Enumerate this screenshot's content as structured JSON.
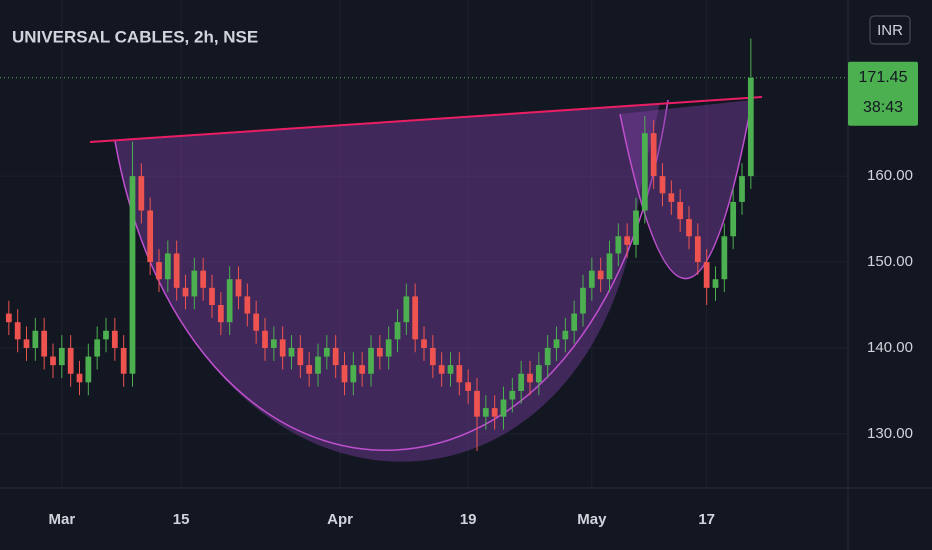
{
  "chart_data": {
    "type": "candlestick",
    "title": "UNIVERSAL CABLES, 2h, NSE",
    "currency": "INR",
    "last_price": 171.45,
    "countdown": "38:43",
    "up_color": "#4caf50",
    "down_color": "#ef5350",
    "xlim": [
      -1,
      95
    ],
    "xticks": [
      {
        "value": 6,
        "label": "Mar"
      },
      {
        "value": 19.5,
        "label": "15"
      },
      {
        "value": 37.5,
        "label": "Apr"
      },
      {
        "value": 52,
        "label": "19"
      },
      {
        "value": 66,
        "label": "May"
      },
      {
        "value": 79,
        "label": "17"
      }
    ],
    "ylim": [
      123.7,
      180.5
    ],
    "yticks": [
      {
        "value": 130,
        "label": "130.00"
      },
      {
        "value": 140,
        "label": "140.00"
      },
      {
        "value": 150,
        "label": "150.00"
      },
      {
        "value": 160,
        "label": "160.00"
      }
    ],
    "grid": true,
    "open": [
      144,
      143,
      141,
      140,
      142,
      139,
      138,
      140,
      137,
      136,
      139,
      141,
      142,
      140,
      137,
      160,
      156,
      150,
      148,
      151,
      147,
      146,
      149,
      147,
      145,
      143,
      148,
      146,
      144,
      142,
      140,
      141,
      139,
      140,
      138,
      137,
      139,
      140,
      138,
      136,
      138,
      137,
      140,
      139,
      141,
      143,
      146,
      141,
      140,
      138,
      137,
      138,
      136,
      135,
      132,
      133,
      132,
      134,
      135,
      137,
      136,
      138,
      140,
      141,
      142,
      144,
      147,
      149,
      148,
      151,
      153,
      152,
      156,
      165,
      160,
      158,
      157,
      155,
      153,
      150,
      147,
      148,
      153,
      157,
      160
    ],
    "high": [
      145.5,
      144.5,
      142.5,
      143.5,
      143.5,
      140.5,
      141.5,
      141.5,
      138.5,
      140.5,
      142.5,
      143.5,
      143.5,
      141.5,
      164,
      161.5,
      157.5,
      151.5,
      152.5,
      152.5,
      148.5,
      150.5,
      150.5,
      148.5,
      146.5,
      149.5,
      149.5,
      147.5,
      145.5,
      143.5,
      142.5,
      142.5,
      141.5,
      141.5,
      139.5,
      140.5,
      141.5,
      141.5,
      139.5,
      139.5,
      139.5,
      141.5,
      141.5,
      142.5,
      144.5,
      147.5,
      147.5,
      142.5,
      141.5,
      139.5,
      139.5,
      139.5,
      137.5,
      136.5,
      134.5,
      134.5,
      135.5,
      136.5,
      138.5,
      138.5,
      139.5,
      141.5,
      142.5,
      143.5,
      145.5,
      148.5,
      150.5,
      150.5,
      152.5,
      154.5,
      154.5,
      157.5,
      167,
      166.5,
      161.5,
      159.5,
      158.5,
      156.5,
      154.5,
      151.5,
      149.5,
      154.5,
      158.5,
      161.5,
      176
    ],
    "low": [
      141.5,
      139.5,
      138.5,
      138.5,
      137.5,
      136.5,
      136.5,
      135.5,
      134.5,
      134.5,
      137.5,
      139.5,
      138.5,
      135.5,
      135.5,
      154.5,
      148.5,
      146.5,
      146.5,
      145.5,
      144.5,
      144.5,
      145.5,
      143.5,
      141.5,
      141.5,
      144.5,
      142.5,
      140.5,
      138.5,
      138.5,
      137.5,
      137.5,
      136.5,
      135.5,
      135.5,
      137.5,
      136.5,
      134.5,
      134.5,
      135.5,
      135.5,
      137.5,
      137.5,
      139.5,
      141.5,
      139.5,
      138.5,
      136.5,
      135.5,
      135.5,
      134.5,
      133.5,
      128,
      130.5,
      130.5,
      130.5,
      132.5,
      133.5,
      134.5,
      134.5,
      136.5,
      138.5,
      139.5,
      140.5,
      142.5,
      145.5,
      146.5,
      146.5,
      149.5,
      150.5,
      150.5,
      154.5,
      158.5,
      156.5,
      155.5,
      153.5,
      151.5,
      148.5,
      145,
      145.5,
      146.5,
      151.5,
      155.5,
      158.5
    ],
    "close": [
      143,
      141,
      140,
      142,
      139,
      138,
      140,
      137,
      136,
      139,
      141,
      142,
      140,
      137,
      160,
      156,
      150,
      148,
      151,
      147,
      146,
      149,
      147,
      145,
      143,
      148,
      146,
      144,
      142,
      140,
      141,
      139,
      140,
      138,
      137,
      139,
      140,
      138,
      136,
      138,
      137,
      140,
      139,
      141,
      143,
      146,
      141,
      140,
      138,
      137,
      138,
      136,
      135,
      132,
      133,
      132,
      134,
      135,
      137,
      136,
      138,
      140,
      141,
      142,
      144,
      147,
      149,
      148,
      151,
      153,
      152,
      156,
      165,
      160,
      158,
      157,
      155,
      153,
      150,
      147,
      148,
      153,
      157,
      160,
      171.45
    ]
  }
}
